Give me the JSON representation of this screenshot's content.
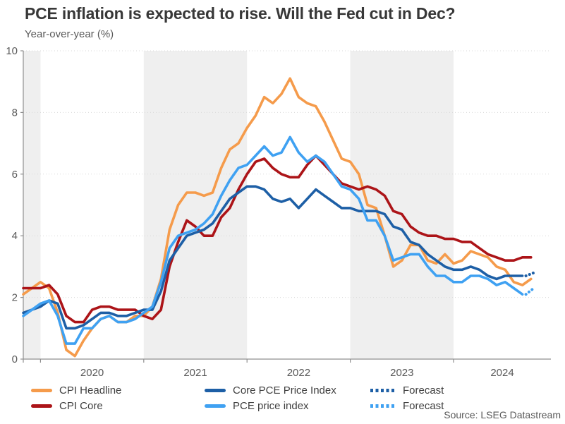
{
  "header": {
    "title": "PCE inflation is expected to rise. Will the Fed cut in Dec?",
    "subtitle": "Year-over-year (%)"
  },
  "source": "Source: LSEG Datastream",
  "colors": {
    "orange": "#F59B4B",
    "dark_red": "#AC1418",
    "dark_blue": "#1D5FA6",
    "light_blue": "#3FA1F2",
    "year_band": "#EFEFEF",
    "gridline": "#D9D9D9",
    "axis": "#8F8F8F",
    "title_text": "#383838",
    "label_text": "#595959"
  },
  "legend": {
    "items": [
      {
        "label": "CPI Headline",
        "color": "#F59B4B",
        "style": "solid"
      },
      {
        "label": "CPI Core",
        "color": "#AC1418",
        "style": "solid"
      },
      {
        "label": "Core PCE Price Index",
        "color": "#1D5FA6",
        "style": "solid"
      },
      {
        "label": "PCE price index",
        "color": "#3FA1F2",
        "style": "solid"
      },
      {
        "label": "Forecast",
        "color": "#1D5FA6",
        "style": "dotted"
      },
      {
        "label": "Forecast",
        "color": "#3FA1F2",
        "style": "dotted"
      }
    ]
  },
  "chart_data": {
    "type": "line",
    "title": "PCE inflation is expected to rise. Will the Fed cut in Dec?",
    "ylabel": "Year-over-year (%)",
    "ylim": [
      0,
      10
    ],
    "yticks": [
      0,
      2,
      4,
      6,
      8,
      10
    ],
    "grid": "horizontal-dotted",
    "legend_position": "bottom",
    "x_months": [
      "2019-11",
      "2019-12",
      "2020-01",
      "2020-02",
      "2020-03",
      "2020-04",
      "2020-05",
      "2020-06",
      "2020-07",
      "2020-08",
      "2020-09",
      "2020-10",
      "2020-11",
      "2020-12",
      "2021-01",
      "2021-02",
      "2021-03",
      "2021-04",
      "2021-05",
      "2021-06",
      "2021-07",
      "2021-08",
      "2021-09",
      "2021-10",
      "2021-11",
      "2021-12",
      "2022-01",
      "2022-02",
      "2022-03",
      "2022-04",
      "2022-05",
      "2022-06",
      "2022-07",
      "2022-08",
      "2022-09",
      "2022-10",
      "2022-11",
      "2022-12",
      "2023-01",
      "2023-02",
      "2023-03",
      "2023-04",
      "2023-05",
      "2023-06",
      "2023-07",
      "2023-08",
      "2023-09",
      "2023-10",
      "2023-11",
      "2023-12",
      "2024-01",
      "2024-02",
      "2024-03",
      "2024-04",
      "2024-05",
      "2024-06",
      "2024-07",
      "2024-08",
      "2024-09",
      "2024-10"
    ],
    "x_tick_indices": [
      2,
      14,
      26,
      38,
      50
    ],
    "x_tick_labels": [
      "2020",
      "2021",
      "2022",
      "2023",
      "2024"
    ],
    "shaded_ranges": [
      [
        0,
        2
      ],
      [
        14,
        26
      ],
      [
        38,
        50
      ]
    ],
    "band_color": "#EFEFEF",
    "series": [
      {
        "name": "CPI Headline",
        "color": "#F59B4B",
        "values": [
          2.1,
          2.3,
          2.5,
          2.3,
          1.5,
          0.3,
          0.1,
          0.6,
          1.0,
          1.3,
          1.4,
          1.2,
          1.2,
          1.4,
          1.4,
          1.7,
          2.6,
          4.2,
          5.0,
          5.4,
          5.4,
          5.3,
          5.4,
          6.2,
          6.8,
          7.0,
          7.5,
          7.9,
          8.5,
          8.3,
          8.6,
          9.1,
          8.5,
          8.3,
          8.2,
          7.7,
          7.1,
          6.5,
          6.4,
          6.0,
          5.0,
          4.9,
          4.0,
          3.0,
          3.2,
          3.7,
          3.7,
          3.2,
          3.1,
          3.4,
          3.1,
          3.2,
          3.5,
          3.4,
          3.3,
          3.0,
          2.9,
          2.5,
          2.4,
          2.6
        ]
      },
      {
        "name": "CPI Core",
        "color": "#AC1418",
        "values": [
          2.3,
          2.3,
          2.3,
          2.4,
          2.1,
          1.4,
          1.2,
          1.2,
          1.6,
          1.7,
          1.7,
          1.6,
          1.6,
          1.6,
          1.4,
          1.3,
          1.6,
          3.0,
          3.8,
          4.5,
          4.3,
          4.0,
          4.0,
          4.6,
          4.9,
          5.5,
          6.0,
          6.4,
          6.5,
          6.2,
          6.0,
          5.9,
          5.9,
          6.3,
          6.6,
          6.3,
          6.0,
          5.7,
          5.6,
          5.5,
          5.6,
          5.5,
          5.3,
          4.8,
          4.7,
          4.3,
          4.1,
          4.0,
          4.0,
          3.9,
          3.9,
          3.8,
          3.8,
          3.6,
          3.4,
          3.3,
          3.2,
          3.2,
          3.3,
          3.3
        ]
      },
      {
        "name": "Core PCE Price Index",
        "color": "#1D5FA6",
        "values": [
          1.5,
          1.6,
          1.7,
          1.9,
          1.8,
          1.0,
          1.0,
          1.1,
          1.3,
          1.5,
          1.5,
          1.4,
          1.4,
          1.5,
          1.6,
          1.6,
          2.2,
          3.2,
          3.6,
          4.0,
          4.1,
          4.2,
          4.4,
          4.8,
          5.2,
          5.4,
          5.6,
          5.6,
          5.5,
          5.2,
          5.1,
          5.2,
          4.9,
          5.2,
          5.5,
          5.3,
          5.1,
          4.9,
          4.9,
          4.8,
          4.8,
          4.8,
          4.7,
          4.3,
          4.2,
          3.8,
          3.7,
          3.4,
          3.2,
          3.0,
          2.9,
          2.9,
          3.0,
          2.9,
          2.7,
          2.6,
          2.7,
          2.7,
          2.7
        ]
      },
      {
        "name": "PCE price index",
        "color": "#3FA1F2",
        "values": [
          1.4,
          1.6,
          1.8,
          1.9,
          1.4,
          0.5,
          0.5,
          1.0,
          1.0,
          1.3,
          1.4,
          1.2,
          1.2,
          1.3,
          1.5,
          1.7,
          2.5,
          3.6,
          4.0,
          4.1,
          4.2,
          4.4,
          4.7,
          5.3,
          5.8,
          6.2,
          6.3,
          6.6,
          6.9,
          6.6,
          6.7,
          7.2,
          6.7,
          6.4,
          6.6,
          6.4,
          6.0,
          5.6,
          5.5,
          5.2,
          4.5,
          4.5,
          4.0,
          3.2,
          3.3,
          3.4,
          3.4,
          3.0,
          2.7,
          2.7,
          2.5,
          2.5,
          2.7,
          2.7,
          2.6,
          2.4,
          2.5,
          2.3,
          2.1
        ]
      }
    ],
    "forecast_series": [
      {
        "name": "Forecast",
        "extends": "Core PCE Price Index",
        "color": "#1D5FA6",
        "style": "dotted",
        "x_months": [
          "2024-09",
          "2024-10"
        ],
        "values": [
          2.7,
          2.8
        ]
      },
      {
        "name": "Forecast",
        "extends": "PCE price index",
        "color": "#3FA1F2",
        "style": "dotted",
        "x_months": [
          "2024-09",
          "2024-10"
        ],
        "values": [
          2.1,
          2.3
        ]
      }
    ]
  }
}
